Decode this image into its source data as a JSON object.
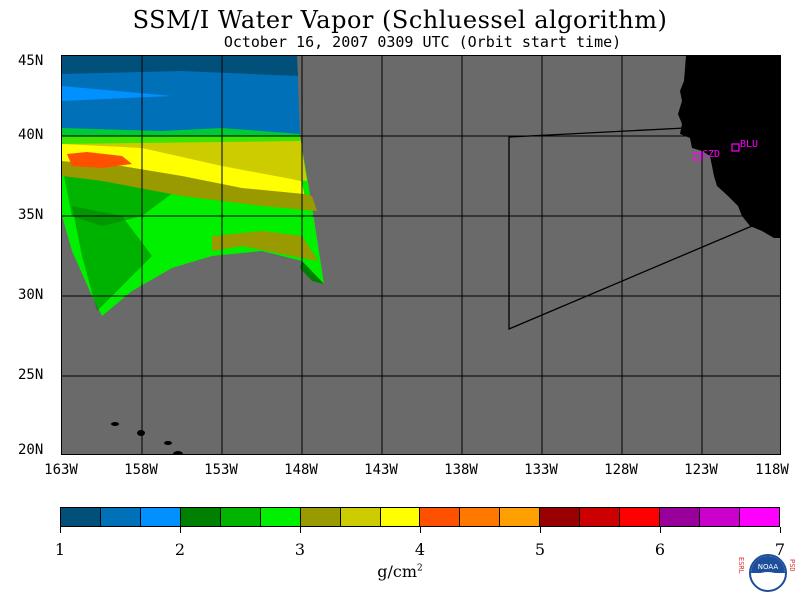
{
  "title": "SSM/I Water Vapor (Schluessel algorithm)",
  "subtitle": "October 16, 2007  0309 UTC  (Orbit start time)",
  "lat_labels": [
    "45N",
    "40N",
    "35N",
    "30N",
    "25N",
    "20N"
  ],
  "lon_labels": [
    "163W",
    "158W",
    "153W",
    "148W",
    "143W",
    "138W",
    "133W",
    "128W",
    "123W",
    "118W"
  ],
  "stations": [
    {
      "id": "CZD",
      "lat": 38.6,
      "lon": -123.2
    },
    {
      "id": "BLU",
      "lat": 39.3,
      "lon": -120.8
    }
  ],
  "colorbar": {
    "colors": [
      "#00507a",
      "#0070b8",
      "#0090ff",
      "#008000",
      "#00b400",
      "#00f000",
      "#999900",
      "#cccc00",
      "#ffff00",
      "#ff5000",
      "#ff7800",
      "#ffa000",
      "#990000",
      "#cc0000",
      "#ff0000",
      "#990099",
      "#cc00cc",
      "#ff00ff"
    ],
    "tick_labels": [
      "1",
      "2",
      "3",
      "4",
      "5",
      "6",
      "7"
    ],
    "unit": "g/cm",
    "unit_exp": "2"
  },
  "logo": {
    "left_text": "ESRL",
    "right_text": "PSD",
    "center": "NOAA"
  },
  "colors": {
    "ocean_nodata": "#6a6a6a",
    "land": "#000000",
    "station_marker": "#ff00ff"
  }
}
